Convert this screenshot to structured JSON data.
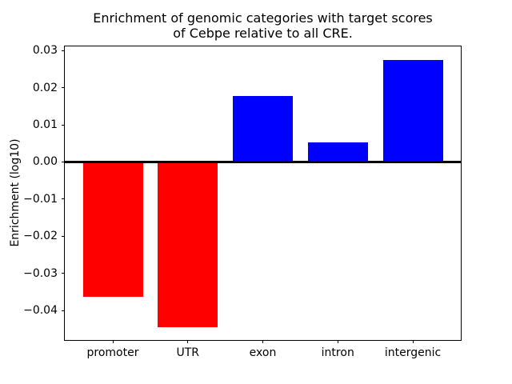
{
  "figure": {
    "background": "#ffffff",
    "axes_edge_color": "#000000",
    "text_color": "#000000"
  },
  "chart_data": {
    "type": "bar",
    "title": "Enrichment of genomic categories with target scores of Cebpe relative to all CRE.",
    "title_lines": [
      "Enrichment of genomic categories with target scores",
      "of Cebpe relative to all CRE."
    ],
    "xlabel": "",
    "ylabel": "Enrichment (log10)",
    "categories": [
      "promoter",
      "UTR",
      "exon",
      "intron",
      "intergenic"
    ],
    "values": [
      -0.0362,
      -0.0445,
      0.0177,
      0.0053,
      0.0275
    ],
    "positive_color": "#0000ff",
    "negative_color": "#ff0000",
    "bar_colors": [
      "#ff0000",
      "#ff0000",
      "#0000ff",
      "#0000ff",
      "#0000ff"
    ],
    "bar_width": 0.8,
    "xlim": [
      -0.64,
      4.64
    ],
    "ylim": [
      -0.0479,
      0.0311
    ],
    "ytick_values": [
      0.03,
      0.02,
      0.01,
      0.0,
      -0.01,
      -0.02,
      -0.03,
      -0.04
    ],
    "ytick_labels": [
      "0.03",
      "0.02",
      "0.01",
      "0.00",
      "−0.01",
      "−0.02",
      "−0.03",
      "−0.04"
    ],
    "grid": false,
    "legend": null,
    "zero_line": true,
    "zero_line_color": "#000000"
  }
}
